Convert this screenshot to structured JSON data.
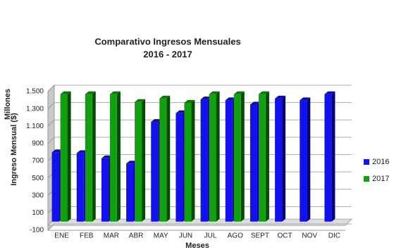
{
  "chart_data": {
    "type": "bar3d",
    "title": "Comparativo Ingresos Mensuales",
    "subtitle": "2016 - 2017",
    "x_label": "Meses",
    "y_label": "Ingreso Mensual ($)",
    "y_unit_label": "Millones",
    "categories": [
      "ENE",
      "FEB",
      "MAR",
      "ABR",
      "MAY",
      "JUN",
      "JUL",
      "AGO",
      "SEPT",
      "OCT",
      "NOV",
      "DIC"
    ],
    "series": [
      {
        "name": "2016",
        "color": "#1010f0",
        "values": [
          800,
          790,
          730,
          670,
          1150,
          1250,
          1410,
          1400,
          1350,
          1420,
          1400,
          1470
        ]
      },
      {
        "name": "2017",
        "color": "#10a010",
        "values": [
          1470,
          1470,
          1470,
          1380,
          1420,
          1370,
          1470,
          1470,
          1470,
          null,
          null,
          null
        ]
      }
    ],
    "ylim": [
      -100,
      1500
    ],
    "yticks": [
      -100,
      100,
      300,
      500,
      700,
      900,
      {
        "value": 1100,
        "label": "1.100"
      },
      {
        "value": 1300,
        "label": "1.300"
      },
      {
        "value": 1500,
        "label": "1.500"
      }
    ],
    "grid": true,
    "legend": "right"
  }
}
